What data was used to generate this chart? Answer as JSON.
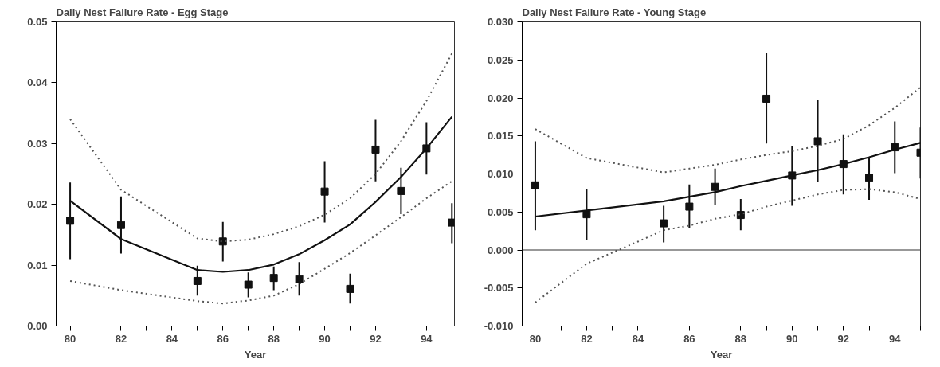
{
  "chart_data": [
    {
      "type": "scatter",
      "title": "Daily Nest Failure Rate - Egg Stage",
      "xlabel": "Year",
      "grid": false,
      "xlim": [
        79.45,
        95.1
      ],
      "ylim": [
        0,
        0.05
      ],
      "xticks": [
        80,
        {
          "value": 81,
          "label": null
        },
        82,
        {
          "value": 83,
          "label": null
        },
        84,
        {
          "value": 85,
          "label": null
        },
        86,
        {
          "value": 87,
          "label": null
        },
        88,
        {
          "value": 89,
          "label": null
        },
        90,
        {
          "value": 91,
          "label": null
        },
        92,
        {
          "value": 93,
          "label": null
        },
        94,
        {
          "value": 95,
          "label": null
        }
      ],
      "yticks": [
        {
          "value": 0,
          "label": "0.00"
        },
        {
          "value": 0.01,
          "label": "0.01"
        },
        {
          "value": 0.02,
          "label": "0.02"
        },
        {
          "value": 0.03,
          "label": "0.03"
        },
        {
          "value": 0.04,
          "label": "0.04"
        },
        {
          "value": 0.05,
          "label": "0.05"
        }
      ],
      "series": [
        {
          "type": "scatter",
          "marker": "square",
          "color": "#111111",
          "x": [
            80,
            82,
            85,
            86,
            87,
            88,
            89,
            90,
            91,
            92,
            93,
            94,
            95
          ],
          "values": [
            0.0173,
            0.0166,
            0.0074,
            0.0139,
            0.0068,
            0.0079,
            0.0077,
            0.0221,
            0.0061,
            0.029,
            0.0222,
            0.0292,
            0.017
          ],
          "errors": [
            [
              0.011,
              0.0236
            ],
            [
              0.0119,
              0.0213
            ],
            [
              0.005,
              0.0099
            ],
            [
              0.0106,
              0.0171
            ],
            [
              0.0047,
              0.0088
            ],
            [
              0.0059,
              0.0098
            ],
            [
              0.005,
              0.0105
            ],
            [
              0.017,
              0.0271
            ],
            [
              0.0037,
              0.0086
            ],
            [
              0.0238,
              0.0339
            ],
            [
              0.0184,
              0.026
            ],
            [
              0.0249,
              0.0335
            ],
            [
              0.0136,
              0.0202
            ]
          ]
        },
        {
          "type": "line",
          "line_style": "solid",
          "color": "#111111",
          "x": [
            80,
            82,
            85,
            86,
            87,
            88,
            89,
            90,
            91,
            92,
            93,
            94,
            95
          ],
          "values": [
            0.0206,
            0.0143,
            0.0092,
            0.0089,
            0.0092,
            0.0101,
            0.0118,
            0.0141,
            0.0167,
            0.0204,
            0.0245,
            0.0292,
            0.0344
          ]
        },
        {
          "type": "line",
          "line_style": "dotted",
          "color": "#555555",
          "x": [
            80,
            82,
            85,
            86,
            87,
            88,
            89,
            90,
            91,
            92,
            93,
            94,
            95
          ],
          "values": [
            0.034,
            0.0224,
            0.0144,
            0.0139,
            0.0142,
            0.0151,
            0.0164,
            0.0183,
            0.021,
            0.025,
            0.0304,
            0.037,
            0.0448
          ]
        },
        {
          "type": "line",
          "line_style": "dotted",
          "color": "#555555",
          "x": [
            80,
            82,
            85,
            86,
            87,
            88,
            89,
            90,
            91,
            92,
            93,
            94,
            95
          ],
          "values": [
            0.0074,
            0.0059,
            0.0041,
            0.0037,
            0.0042,
            0.005,
            0.0069,
            0.0094,
            0.012,
            0.0149,
            0.0179,
            0.021,
            0.0238
          ]
        }
      ]
    },
    {
      "type": "scatter",
      "title": "Daily Nest Failure Rate - Young Stage",
      "xlabel": "Year",
      "grid": false,
      "xlim": [
        79.49,
        95.0
      ],
      "ylim": [
        -0.01,
        0.03
      ],
      "xticks": [
        80,
        {
          "value": 81,
          "label": null
        },
        82,
        {
          "value": 83,
          "label": null
        },
        84,
        {
          "value": 85,
          "label": null
        },
        86,
        {
          "value": 87,
          "label": null
        },
        88,
        {
          "value": 89,
          "label": null
        },
        90,
        {
          "value": 91,
          "label": null
        },
        92,
        {
          "value": 93,
          "label": null
        },
        94,
        {
          "value": 95,
          "label": null
        }
      ],
      "yticks": [
        {
          "value": -0.01,
          "label": "-0.010"
        },
        {
          "value": -0.005,
          "label": "-0.005"
        },
        {
          "value": 0,
          "label": "0.000"
        },
        {
          "value": 0.005,
          "label": "0.005"
        },
        {
          "value": 0.01,
          "label": "0.010"
        },
        {
          "value": 0.015,
          "label": "0.015"
        },
        {
          "value": 0.02,
          "label": "0.020"
        },
        {
          "value": 0.025,
          "label": "0.025"
        },
        {
          "value": 0.03,
          "label": "0.030"
        }
      ],
      "ref_lines": [
        {
          "axis": "y",
          "value": 0,
          "color": "#333333"
        }
      ],
      "series": [
        {
          "type": "scatter",
          "marker": "square",
          "color": "#111111",
          "x": [
            80,
            82,
            85,
            86,
            87,
            88,
            89,
            90,
            91,
            92,
            93,
            94,
            95
          ],
          "values": [
            0.0085,
            0.0047,
            0.0035,
            0.0057,
            0.0083,
            0.0046,
            0.0199,
            0.0098,
            0.0143,
            0.0113,
            0.0095,
            0.0135,
            0.0128
          ],
          "errors": [
            [
              0.0026,
              0.0143
            ],
            [
              0.0013,
              0.008
            ],
            [
              0.001,
              0.0058
            ],
            [
              0.0029,
              0.0086
            ],
            [
              0.0059,
              0.0107
            ],
            [
              0.0026,
              0.0067
            ],
            [
              0.014,
              0.0259
            ],
            [
              0.0058,
              0.0137
            ],
            [
              0.009,
              0.0197
            ],
            [
              0.0073,
              0.0152
            ],
            [
              0.0066,
              0.0122
            ],
            [
              0.0101,
              0.0169
            ],
            [
              0.0094,
              0.0161
            ]
          ]
        },
        {
          "type": "line",
          "line_style": "solid",
          "color": "#111111",
          "x": [
            80,
            82,
            85,
            86,
            87,
            88,
            89,
            90,
            91,
            92,
            93,
            94,
            95
          ],
          "values": [
            0.0044,
            0.0052,
            0.0064,
            0.007,
            0.0076,
            0.0084,
            0.0091,
            0.0098,
            0.0105,
            0.0113,
            0.0122,
            0.0132,
            0.0141
          ]
        },
        {
          "type": "line",
          "line_style": "dotted",
          "color": "#555555",
          "x": [
            80,
            82,
            85,
            86,
            87,
            88,
            89,
            90,
            91,
            92,
            93,
            94,
            95
          ],
          "values": [
            0.0159,
            0.0121,
            0.0102,
            0.0107,
            0.0112,
            0.0119,
            0.0125,
            0.013,
            0.0137,
            0.0146,
            0.0164,
            0.0187,
            0.0214
          ]
        },
        {
          "type": "line",
          "line_style": "dotted",
          "color": "#555555",
          "x": [
            80,
            82,
            84,
            85,
            86,
            87,
            88,
            89,
            90,
            91,
            92,
            93,
            94,
            95
          ],
          "values": [
            -0.0069,
            -0.0018,
            0.0011,
            0.0026,
            0.0032,
            0.0041,
            0.0047,
            0.0057,
            0.0065,
            0.0073,
            0.0079,
            0.008,
            0.0076,
            0.0067
          ]
        }
      ]
    }
  ]
}
